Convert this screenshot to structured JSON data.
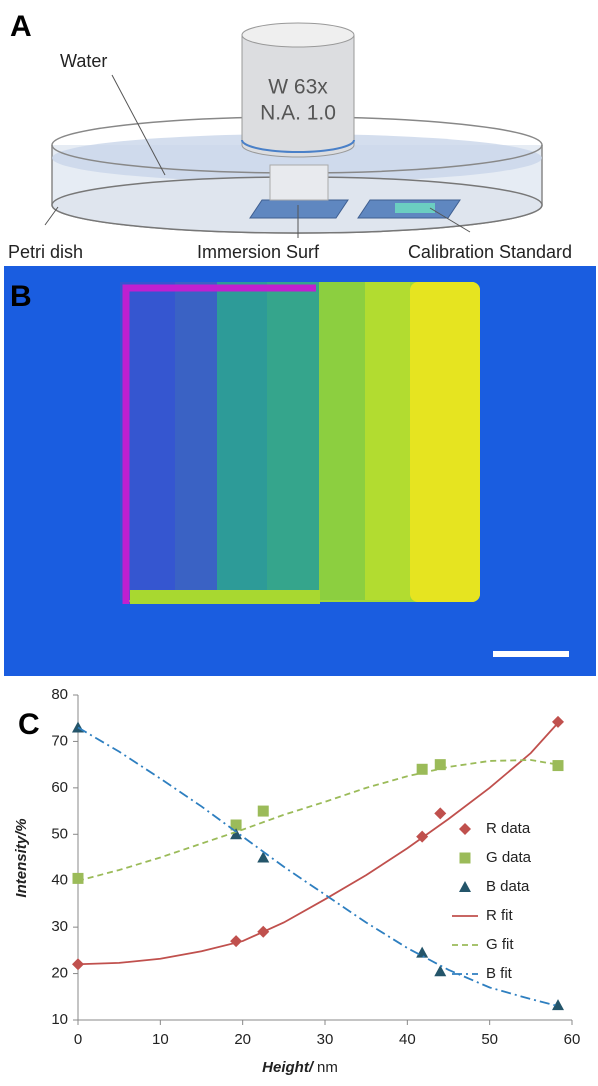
{
  "panels": {
    "a": "A",
    "b": "B",
    "c": "C"
  },
  "diagram": {
    "water": "Water",
    "objective_line1": "W 63x",
    "objective_line2": "N.A. 1.0",
    "petri_dish": "Petri dish",
    "immersion_surf": "Immersion Surf",
    "calibration_standard": "Calibration Standard"
  },
  "chart_data": {
    "type": "scatter",
    "x_label": "Height/",
    "x_unit": "nm",
    "y_label": "Intensity/%",
    "xlim": [
      0,
      60
    ],
    "xticks": [
      0,
      10,
      20,
      30,
      40,
      50,
      60
    ],
    "ylim": [
      10,
      80
    ],
    "yticks": [
      10,
      20,
      30,
      40,
      50,
      60,
      70,
      80
    ],
    "grid": false,
    "legend": "right",
    "series": [
      {
        "name": "R data",
        "color": "#c0504d",
        "marker": "diamond",
        "x": [
          0,
          19.2,
          22.5,
          41.8,
          44,
          58.3
        ],
        "values": [
          22,
          27,
          29,
          49.5,
          54.5,
          74.2
        ]
      },
      {
        "name": "G data",
        "color": "#9bbb59",
        "marker": "square",
        "x": [
          0,
          19.2,
          22.5,
          41.8,
          44,
          58.3
        ],
        "values": [
          40.5,
          52,
          55,
          64,
          65,
          64.8
        ]
      },
      {
        "name": "B data",
        "color": "#24556a",
        "marker": "triangle",
        "x": [
          0,
          19.2,
          22.5,
          41.8,
          44,
          58.3
        ],
        "values": [
          73,
          50,
          45,
          24.5,
          20.5,
          13.2
        ]
      },
      {
        "name": "R fit",
        "color": "#c0504d",
        "line_style": "solid",
        "x": [
          0,
          5,
          10,
          15,
          20,
          25,
          30,
          35,
          40,
          45,
          50,
          55,
          58.3
        ],
        "values": [
          22,
          22.3,
          23.2,
          24.8,
          27,
          31,
          36,
          41.2,
          47,
          53.3,
          60,
          67.5,
          74
        ]
      },
      {
        "name": "G fit",
        "color": "#9bbb59",
        "line_style": "dashed",
        "x": [
          0,
          5,
          10,
          15,
          20,
          25,
          30,
          35,
          40,
          45,
          50,
          55,
          58.3
        ],
        "values": [
          40,
          42.3,
          45,
          48,
          51,
          54.2,
          57,
          60,
          62.5,
          64.5,
          65.8,
          66,
          65
        ]
      },
      {
        "name": "B fit",
        "color": "#2e7fc0",
        "line_style": "dashdot",
        "x": [
          0,
          5,
          10,
          15,
          20,
          25,
          30,
          35,
          40,
          45,
          50,
          55,
          58.3
        ],
        "values": [
          73,
          67.8,
          62,
          56,
          49.5,
          43,
          37,
          31,
          25.5,
          20.8,
          17,
          14.5,
          13
        ]
      }
    ]
  }
}
